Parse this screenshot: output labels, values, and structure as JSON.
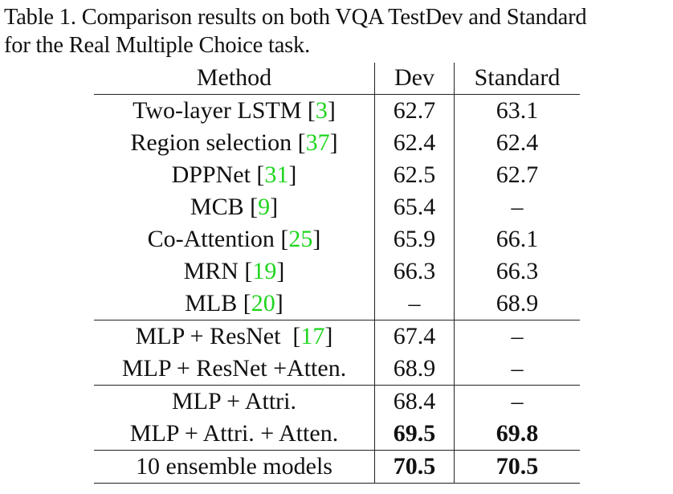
{
  "caption": {
    "line1": "Table 1. Comparison results on both VQA TestDev and Standard",
    "line2": "for the Real Multiple Choice task."
  },
  "table": {
    "headers": [
      "Method",
      "Dev",
      "Standard"
    ],
    "groups": [
      {
        "rows": [
          {
            "method": "Two-layer LSTM ",
            "ref": "3",
            "dev": "62.7",
            "std": "63.1",
            "dev_bold": false,
            "std_bold": false
          },
          {
            "method": "Region selection ",
            "ref": "37",
            "dev": "62.4",
            "std": "62.4",
            "dev_bold": false,
            "std_bold": false
          },
          {
            "method": "DPPNet ",
            "ref": "31",
            "dev": "62.5",
            "std": "62.7",
            "dev_bold": false,
            "std_bold": false
          },
          {
            "method": "MCB ",
            "ref": "9",
            "dev": "65.4",
            "std": "–",
            "dev_bold": false,
            "std_bold": false
          },
          {
            "method": "Co-Attention ",
            "ref": "25",
            "dev": "65.9",
            "std": "66.1",
            "dev_bold": false,
            "std_bold": false
          },
          {
            "method": "MRN ",
            "ref": "19",
            "dev": "66.3",
            "std": "66.3",
            "dev_bold": false,
            "std_bold": false
          },
          {
            "method": "MLB ",
            "ref": "20",
            "dev": "–",
            "std": "68.9",
            "dev_bold": false,
            "std_bold": false
          }
        ]
      },
      {
        "rows": [
          {
            "method": "MLP + ResNet  ",
            "ref": "17",
            "dev": "67.4",
            "std": "–",
            "dev_bold": false,
            "std_bold": false
          },
          {
            "method": "MLP + ResNet +Atten.",
            "ref": "",
            "dev": "68.9",
            "std": "–",
            "dev_bold": false,
            "std_bold": false
          }
        ]
      },
      {
        "rows": [
          {
            "method": "MLP + Attri.",
            "ref": "",
            "dev": "68.4",
            "std": "–",
            "dev_bold": false,
            "std_bold": false
          },
          {
            "method": "MLP + Attri. + Atten.",
            "ref": "",
            "dev": "69.5",
            "std": "69.8",
            "dev_bold": true,
            "std_bold": true
          }
        ]
      },
      {
        "rows": [
          {
            "method": "10 ensemble models",
            "ref": "",
            "dev": "70.5",
            "std": "70.5",
            "dev_bold": true,
            "std_bold": true
          }
        ]
      }
    ]
  },
  "colors": {
    "text": "#111111",
    "citation": "#1fd51f",
    "rule": "#222222",
    "background": "#ffffff"
  }
}
